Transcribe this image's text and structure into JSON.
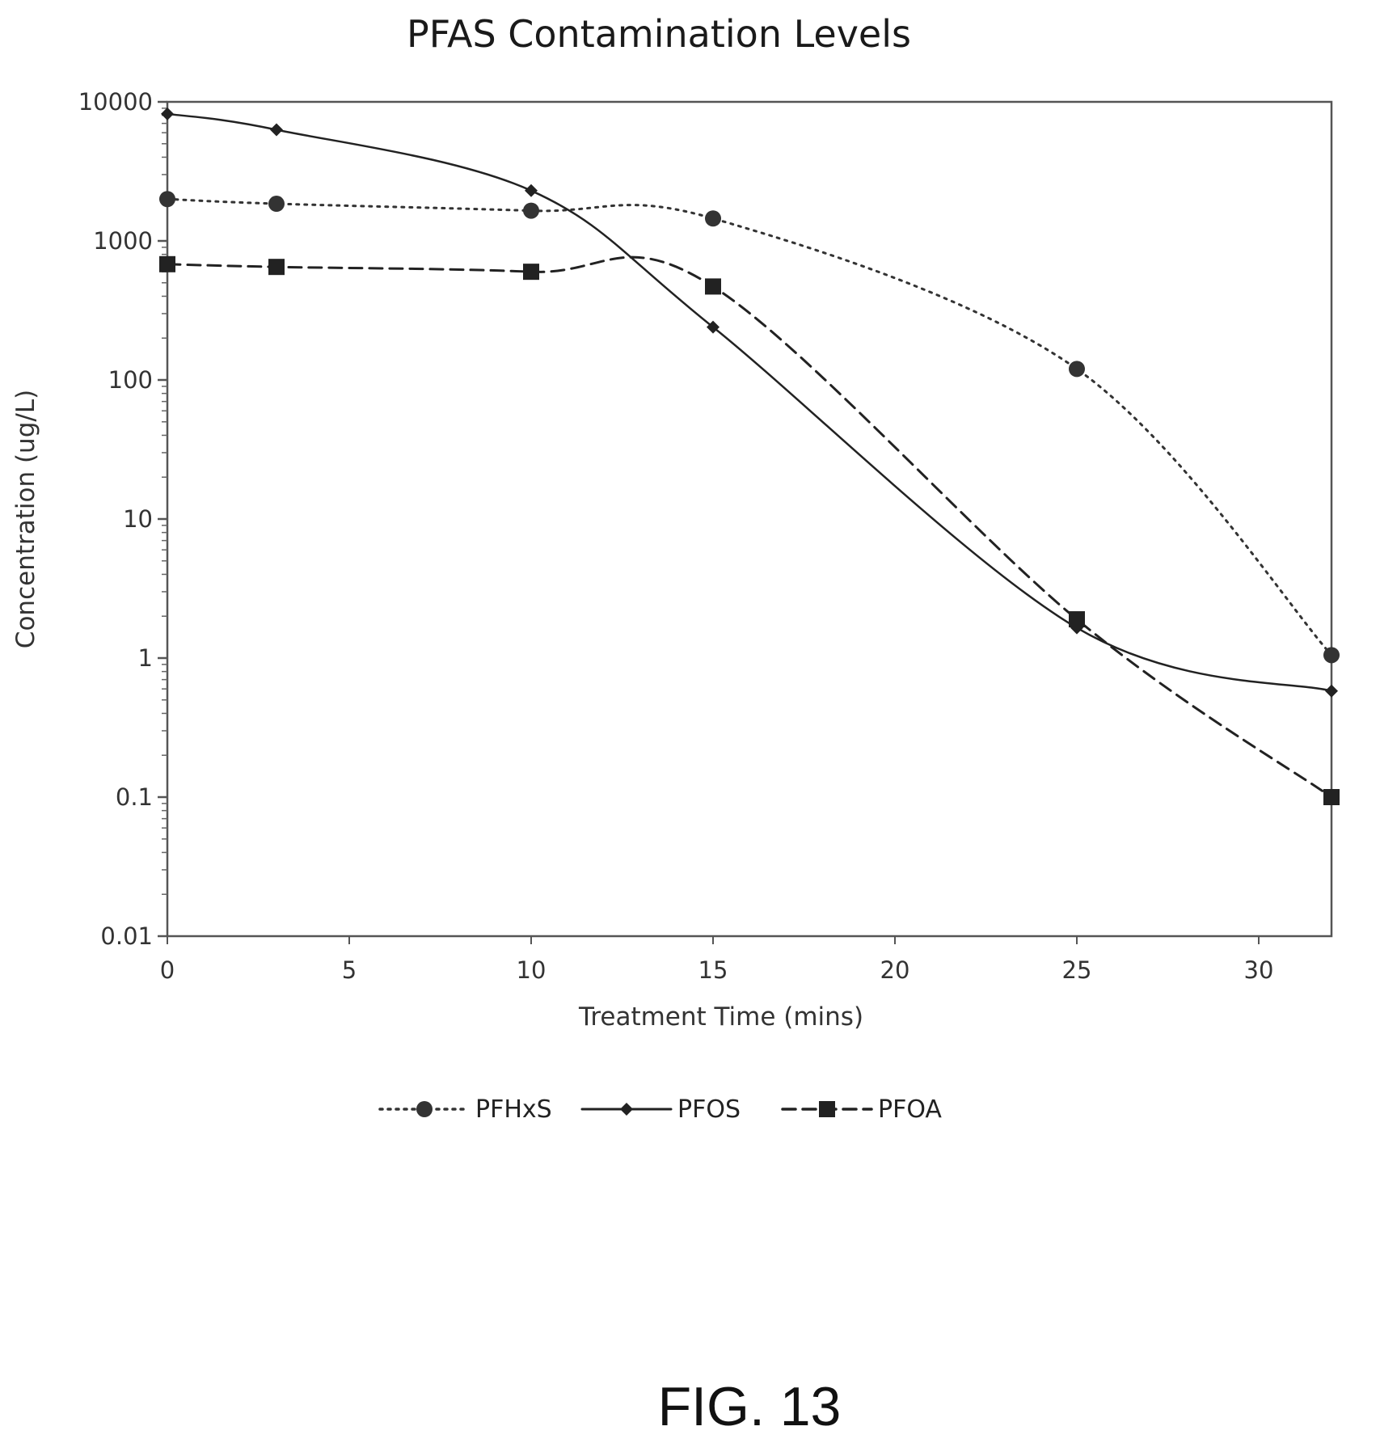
{
  "chart_data": {
    "type": "line",
    "title": "PFAS Contamination Levels",
    "xlabel": "Treatment Time (mins)",
    "ylabel": "Concentration (ug/L)",
    "x_ticks": [
      0,
      5,
      10,
      15,
      20,
      25,
      30
    ],
    "y_ticks": [
      0.01,
      0.1,
      1,
      10,
      100,
      1000,
      10000
    ],
    "y_tick_labels": [
      "0.01",
      "0.1",
      "1",
      "10",
      "100",
      "1000",
      "10000"
    ],
    "xlim": [
      0,
      32
    ],
    "ylim": [
      0.01,
      10000
    ],
    "y_scale": "log",
    "grid": false,
    "legend_position": "bottom",
    "series": [
      {
        "name": "PFHxS",
        "line_style": "dotted",
        "marker": "circle",
        "color": "#333333",
        "x": [
          0,
          3,
          10,
          15,
          25,
          32
        ],
        "y": [
          2000,
          1850,
          1650,
          1450,
          120,
          1.05
        ]
      },
      {
        "name": "PFOS",
        "line_style": "solid",
        "marker": "diamond",
        "color": "#222222",
        "x": [
          0,
          3,
          10,
          15,
          25,
          32
        ],
        "y": [
          8200,
          6300,
          2300,
          240,
          1.65,
          0.58
        ]
      },
      {
        "name": "PFOA",
        "line_style": "dashed",
        "marker": "square",
        "color": "#222222",
        "x": [
          0,
          3,
          10,
          15,
          25,
          32
        ],
        "y": [
          680,
          650,
          600,
          470,
          1.9,
          0.1
        ]
      }
    ]
  },
  "figure_label": "FIG. 13"
}
